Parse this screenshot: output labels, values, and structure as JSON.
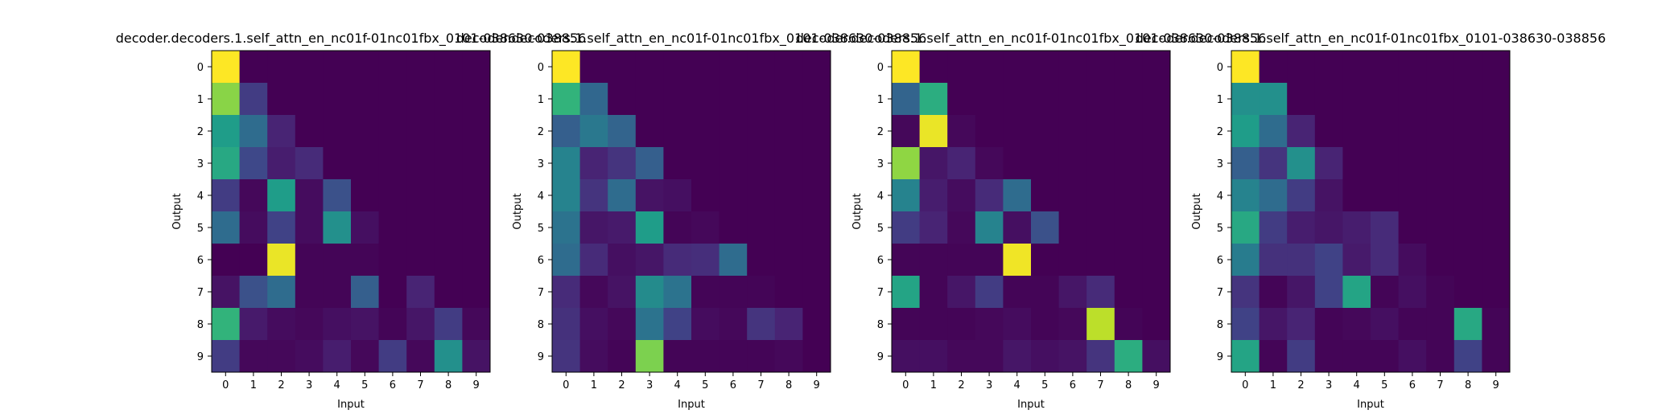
{
  "colormap": {
    "name": "viridis",
    "stops": [
      "#440154",
      "#482878",
      "#3e4989",
      "#31688e",
      "#26828e",
      "#1f9e89",
      "#35b779",
      "#6ece58",
      "#b5de2b",
      "#fde725"
    ]
  },
  "chart_data": [
    {
      "type": "heatmap",
      "title": "decoder.decoders.1.self_attn_en_nc01f-01nc01fbx_0101-038630-038856",
      "xlabel": "Input",
      "ylabel": "Output",
      "x_ticks": [
        "0",
        "1",
        "2",
        "3",
        "4",
        "5",
        "6",
        "7",
        "8",
        "9"
      ],
      "y_ticks": [
        "0",
        "1",
        "2",
        "3",
        "4",
        "5",
        "6",
        "7",
        "8",
        "9"
      ],
      "values": [
        [
          1.0,
          0.0,
          0.0,
          0.0,
          0.0,
          0.0,
          0.0,
          0.0,
          0.0,
          0.0
        ],
        [
          0.82,
          0.18,
          0.0,
          0.0,
          0.0,
          0.0,
          0.0,
          0.0,
          0.0,
          0.0
        ],
        [
          0.55,
          0.35,
          0.1,
          0.0,
          0.0,
          0.0,
          0.0,
          0.0,
          0.0,
          0.0
        ],
        [
          0.6,
          0.22,
          0.08,
          0.12,
          0.0,
          0.0,
          0.0,
          0.0,
          0.0,
          0.0
        ],
        [
          0.18,
          0.02,
          0.55,
          0.03,
          0.25,
          0.0,
          0.0,
          0.0,
          0.0,
          0.0
        ],
        [
          0.35,
          0.03,
          0.2,
          0.03,
          0.5,
          0.04,
          0.0,
          0.0,
          0.0,
          0.0
        ],
        [
          0.0,
          0.0,
          0.97,
          0.01,
          0.01,
          0.01,
          0.0,
          0.0,
          0.0,
          0.0
        ],
        [
          0.05,
          0.25,
          0.35,
          0.01,
          0.01,
          0.3,
          0.0,
          0.1,
          0.0,
          0.0
        ],
        [
          0.65,
          0.07,
          0.03,
          0.02,
          0.04,
          0.05,
          0.01,
          0.06,
          0.18,
          0.02
        ],
        [
          0.18,
          0.02,
          0.02,
          0.03,
          0.08,
          0.02,
          0.18,
          0.02,
          0.5,
          0.05
        ]
      ]
    },
    {
      "type": "heatmap",
      "title": "decoder.decoders.1.self_attn_en_nc01f-01nc01fbx_0101-038630-038856",
      "xlabel": "Input",
      "ylabel": "Output",
      "x_ticks": [
        "0",
        "1",
        "2",
        "3",
        "4",
        "5",
        "6",
        "7",
        "8",
        "9"
      ],
      "y_ticks": [
        "0",
        "1",
        "2",
        "3",
        "4",
        "5",
        "6",
        "7",
        "8",
        "9"
      ],
      "values": [
        [
          1.0,
          0.0,
          0.0,
          0.0,
          0.0,
          0.0,
          0.0,
          0.0,
          0.0,
          0.0
        ],
        [
          0.65,
          0.33,
          0.0,
          0.0,
          0.0,
          0.0,
          0.0,
          0.0,
          0.0,
          0.0
        ],
        [
          0.3,
          0.4,
          0.32,
          0.0,
          0.0,
          0.0,
          0.0,
          0.0,
          0.0,
          0.0
        ],
        [
          0.45,
          0.1,
          0.15,
          0.3,
          0.0,
          0.0,
          0.0,
          0.0,
          0.0,
          0.0
        ],
        [
          0.45,
          0.15,
          0.35,
          0.05,
          0.04,
          0.0,
          0.0,
          0.0,
          0.0,
          0.0
        ],
        [
          0.38,
          0.06,
          0.07,
          0.55,
          0.01,
          0.02,
          0.0,
          0.0,
          0.0,
          0.0
        ],
        [
          0.35,
          0.12,
          0.04,
          0.06,
          0.12,
          0.13,
          0.35,
          0.0,
          0.0,
          0.0
        ],
        [
          0.12,
          0.02,
          0.05,
          0.48,
          0.38,
          0.01,
          0.01,
          0.01,
          0.0,
          0.0
        ],
        [
          0.14,
          0.04,
          0.02,
          0.38,
          0.2,
          0.03,
          0.02,
          0.15,
          0.1,
          0.0
        ],
        [
          0.15,
          0.03,
          0.01,
          0.8,
          0.01,
          0.01,
          0.01,
          0.01,
          0.02,
          0.0
        ]
      ]
    },
    {
      "type": "heatmap",
      "title": "decoder.decoders.1.self_attn_en_nc01f-01nc01fbx_0101-038630-038856",
      "xlabel": "Input",
      "ylabel": "Output",
      "x_ticks": [
        "0",
        "1",
        "2",
        "3",
        "4",
        "5",
        "6",
        "7",
        "8",
        "9"
      ],
      "y_ticks": [
        "0",
        "1",
        "2",
        "3",
        "4",
        "5",
        "6",
        "7",
        "8",
        "9"
      ],
      "values": [
        [
          1.0,
          0.0,
          0.0,
          0.0,
          0.0,
          0.0,
          0.0,
          0.0,
          0.0,
          0.0
        ],
        [
          0.32,
          0.62,
          0.0,
          0.0,
          0.0,
          0.0,
          0.0,
          0.0,
          0.0,
          0.0
        ],
        [
          0.02,
          0.97,
          0.02,
          0.0,
          0.0,
          0.0,
          0.0,
          0.0,
          0.0,
          0.0
        ],
        [
          0.83,
          0.06,
          0.1,
          0.02,
          0.0,
          0.0,
          0.0,
          0.0,
          0.0,
          0.0
        ],
        [
          0.45,
          0.08,
          0.03,
          0.12,
          0.35,
          0.0,
          0.0,
          0.0,
          0.0,
          0.0
        ],
        [
          0.18,
          0.1,
          0.02,
          0.45,
          0.04,
          0.25,
          0.0,
          0.0,
          0.0,
          0.0
        ],
        [
          0.01,
          0.01,
          0.01,
          0.01,
          0.98,
          0.0,
          0.0,
          0.0,
          0.0,
          0.0
        ],
        [
          0.58,
          0.01,
          0.06,
          0.18,
          0.01,
          0.01,
          0.06,
          0.12,
          0.0,
          0.0
        ],
        [
          0.01,
          0.01,
          0.01,
          0.02,
          0.03,
          0.01,
          0.02,
          0.9,
          0.01,
          0.0
        ],
        [
          0.04,
          0.04,
          0.02,
          0.02,
          0.06,
          0.04,
          0.05,
          0.15,
          0.62,
          0.04
        ]
      ]
    },
    {
      "type": "heatmap",
      "title": "decoder.decoders.1.self_attn_en_nc01f-01nc01fbx_0101-038630-038856",
      "xlabel": "Input",
      "ylabel": "Output",
      "x_ticks": [
        "0",
        "1",
        "2",
        "3",
        "4",
        "5",
        "6",
        "7",
        "8",
        "9"
      ],
      "y_ticks": [
        "0",
        "1",
        "2",
        "3",
        "4",
        "5",
        "6",
        "7",
        "8",
        "9"
      ],
      "values": [
        [
          1.0,
          0.0,
          0.0,
          0.0,
          0.0,
          0.0,
          0.0,
          0.0,
          0.0,
          0.0
        ],
        [
          0.5,
          0.5,
          0.0,
          0.0,
          0.0,
          0.0,
          0.0,
          0.0,
          0.0,
          0.0
        ],
        [
          0.55,
          0.35,
          0.1,
          0.0,
          0.0,
          0.0,
          0.0,
          0.0,
          0.0,
          0.0
        ],
        [
          0.3,
          0.15,
          0.5,
          0.1,
          0.0,
          0.0,
          0.0,
          0.0,
          0.0,
          0.0
        ],
        [
          0.45,
          0.35,
          0.18,
          0.05,
          0.0,
          0.0,
          0.0,
          0.0,
          0.0,
          0.0
        ],
        [
          0.6,
          0.18,
          0.08,
          0.06,
          0.08,
          0.12,
          0.0,
          0.0,
          0.0,
          0.0
        ],
        [
          0.42,
          0.14,
          0.14,
          0.2,
          0.07,
          0.12,
          0.03,
          0.0,
          0.0,
          0.0
        ],
        [
          0.15,
          0.01,
          0.06,
          0.2,
          0.58,
          0.01,
          0.04,
          0.01,
          0.0,
          0.0
        ],
        [
          0.2,
          0.06,
          0.1,
          0.01,
          0.02,
          0.04,
          0.01,
          0.01,
          0.6,
          0.01
        ],
        [
          0.58,
          0.01,
          0.18,
          0.01,
          0.01,
          0.01,
          0.04,
          0.01,
          0.2,
          0.01
        ]
      ]
    }
  ]
}
